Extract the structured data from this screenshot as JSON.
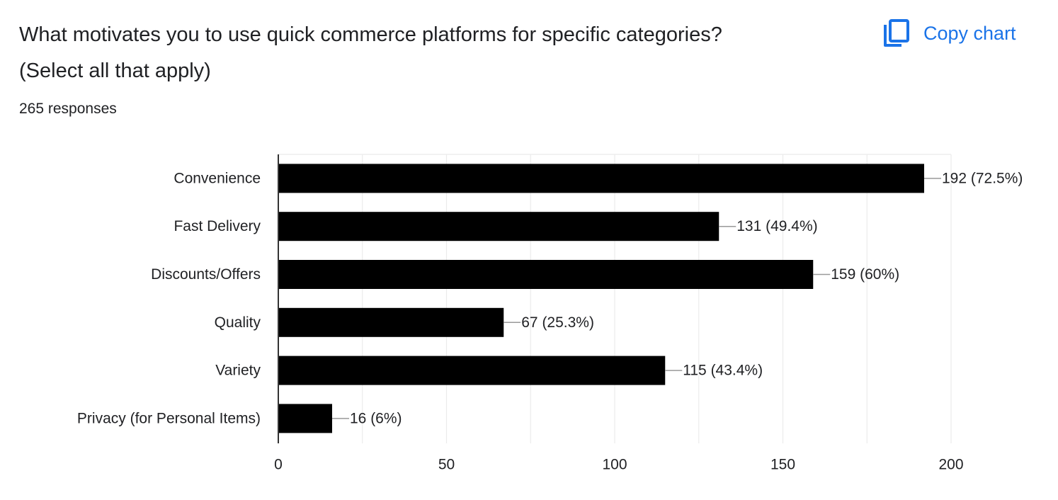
{
  "question": {
    "title_line1": "What motivates you to use quick commerce platforms for specific categories?",
    "title_line2": "(Select all that apply)",
    "responses": "265 responses"
  },
  "toolbar": {
    "copy_label": "Copy chart",
    "copy_icon": "copy-icon",
    "accent_color": "#1a73e8"
  },
  "chart_data": {
    "type": "bar",
    "orientation": "horizontal",
    "categories": [
      "Convenience",
      "Fast Delivery",
      "Discounts/Offers",
      "Quality",
      "Variety",
      "Privacy (for Personal Items)"
    ],
    "values": [
      192,
      131,
      159,
      67,
      115,
      16
    ],
    "data_labels": [
      "192 (72.5%)",
      "131 (49.4%)",
      "159 (60%)",
      "67 (25.3%)",
      "115 (43.4%)",
      "16 (6%)"
    ],
    "xlim": [
      0,
      200
    ],
    "x_ticks": [
      0,
      50,
      100,
      150,
      200
    ],
    "minor_gridlines_every": 25,
    "grid": true,
    "bar_color": "#000000",
    "title": "",
    "xlabel": "",
    "ylabel": ""
  }
}
